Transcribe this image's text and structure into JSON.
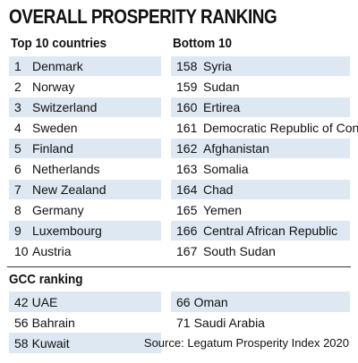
{
  "title": "OVERALL PROSPERITY RANKING",
  "top": {
    "heading": "Top 10 countries",
    "items": [
      {
        "rank": "1",
        "name": "Denmark"
      },
      {
        "rank": "2",
        "name": "Norway"
      },
      {
        "rank": "3",
        "name": "Switzerland"
      },
      {
        "rank": "4",
        "name": "Sweden"
      },
      {
        "rank": "5",
        "name": "Finland"
      },
      {
        "rank": "6",
        "name": "Netherlands"
      },
      {
        "rank": "7",
        "name": "New Zealand"
      },
      {
        "rank": "8",
        "name": "Germany"
      },
      {
        "rank": "9",
        "name": "Luxembourg"
      },
      {
        "rank": "10",
        "name": "Austria"
      }
    ]
  },
  "bottom": {
    "heading": "Bottom 10",
    "items": [
      {
        "rank": "158",
        "name": "Syria"
      },
      {
        "rank": "159",
        "name": "Sudan"
      },
      {
        "rank": "160",
        "name": "Ertirea"
      },
      {
        "rank": "161",
        "name": "Democratic Republic of Congo"
      },
      {
        "rank": "162",
        "name": "Afghanistan"
      },
      {
        "rank": "163",
        "name": "Somalia"
      },
      {
        "rank": "164",
        "name": "Chad"
      },
      {
        "rank": "165",
        "name": "Yemen"
      },
      {
        "rank": "166",
        "name": "Central African Republic"
      },
      {
        "rank": "167",
        "name": "South Sudan"
      }
    ]
  },
  "gcc": {
    "heading": "GCC ranking",
    "left": [
      {
        "rank": "42",
        "name": "UAE"
      },
      {
        "rank": "56",
        "name": "Bahrain"
      },
      {
        "rank": "58",
        "name": "Kuwait"
      }
    ],
    "right": [
      {
        "rank": "66",
        "name": "Oman"
      },
      {
        "rank": "71",
        "name": "Saudi Arabia"
      }
    ]
  },
  "source": "Source: Legatum Prosperity Index 2020",
  "colors": {
    "row_shade": "#dde8f2",
    "text": "#111111"
  }
}
